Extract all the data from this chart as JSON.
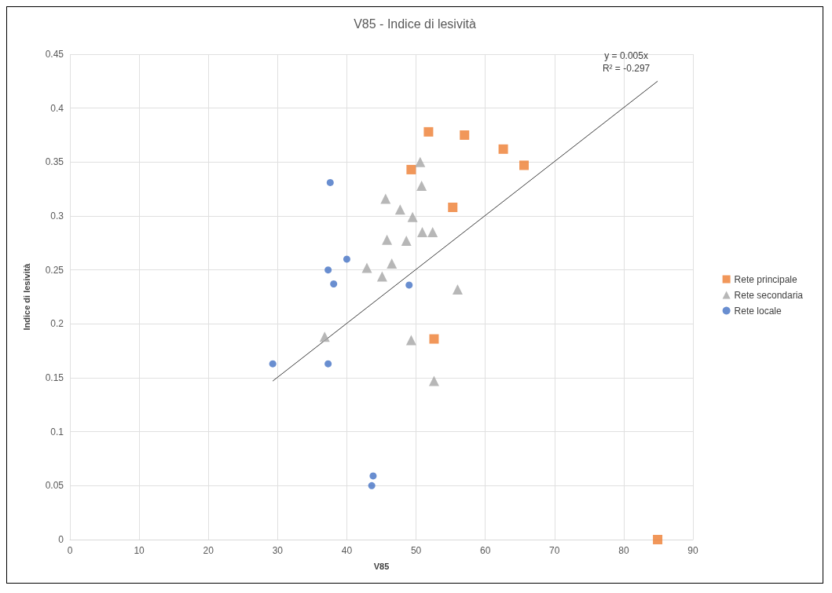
{
  "chart_data": {
    "type": "scatter",
    "title": "V85 - Indice di lesività",
    "xlabel": "V85",
    "ylabel": "Indice di lesività",
    "xlim": [
      0,
      90
    ],
    "xticks": [
      0,
      10,
      20,
      30,
      40,
      50,
      60,
      70,
      80,
      90
    ],
    "ylim": [
      0,
      0.45
    ],
    "yticks": [
      0,
      0.05,
      0.1,
      0.15,
      0.2,
      0.25,
      0.3,
      0.35,
      0.4,
      0.45
    ],
    "grid": true,
    "legend": "right",
    "annotations": [
      "y = 0.005x",
      "R² = -0.297"
    ],
    "series": [
      {
        "name": "Rete principale",
        "color": "#ed7d31",
        "marker": "square",
        "x": [
          51.8,
          57.0,
          62.6,
          65.6,
          49.3,
          55.3,
          52.6,
          84.9
        ],
        "values": [
          0.378,
          0.375,
          0.362,
          0.347,
          0.343,
          0.308,
          0.186,
          0
        ]
      },
      {
        "name": "Rete secondaria",
        "color": "#a5a5a5",
        "marker": "triangle",
        "x": [
          50.6,
          50.8,
          45.6,
          47.7,
          49.5,
          50.9,
          52.4,
          45.8,
          48.6,
          46.5,
          42.9,
          45.1,
          56.0,
          36.8,
          49.3,
          52.6
        ],
        "values": [
          0.35,
          0.328,
          0.316,
          0.306,
          0.299,
          0.285,
          0.285,
          0.278,
          0.277,
          0.256,
          0.252,
          0.244,
          0.232,
          0.188,
          0.185,
          0.147
        ]
      },
      {
        "name": "Rete locale",
        "color": "#4472c4",
        "marker": "circle",
        "x": [
          37.6,
          40.0,
          37.3,
          38.1,
          49.0,
          29.3,
          37.3,
          43.8,
          43.6
        ],
        "values": [
          0.331,
          0.26,
          0.25,
          0.237,
          0.236,
          0.163,
          0.163,
          0.059,
          0.05
        ]
      },
      {
        "type": "line",
        "color": "#404040",
        "marker": "none",
        "x": [
          29.3,
          84.9
        ],
        "values": [
          0.147,
          0.425
        ]
      }
    ]
  }
}
